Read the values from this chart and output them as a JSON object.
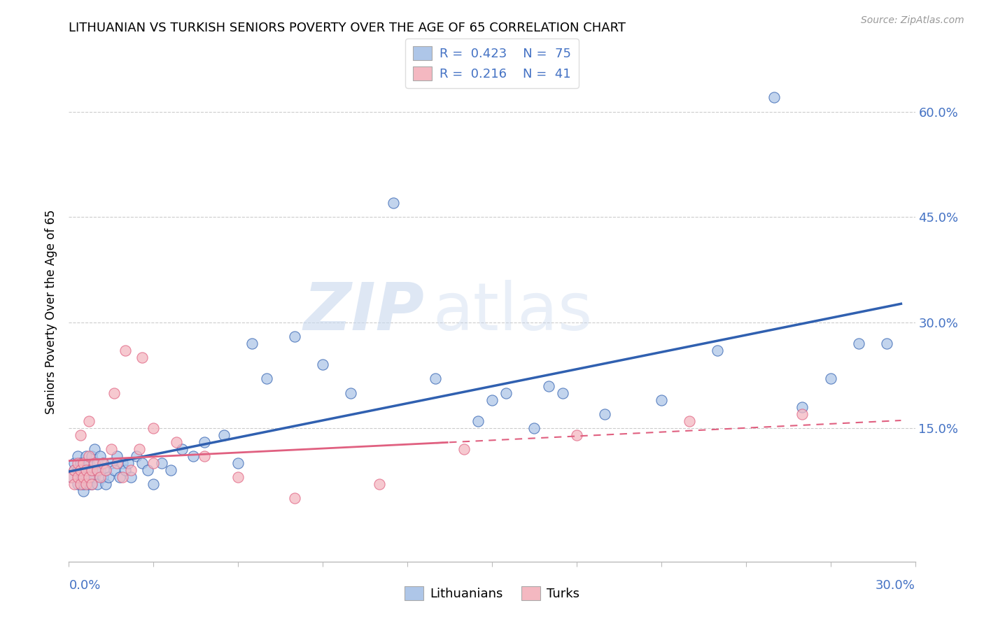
{
  "title": "LITHUANIAN VS TURKISH SENIORS POVERTY OVER THE AGE OF 65 CORRELATION CHART",
  "source": "Source: ZipAtlas.com",
  "ylabel": "Seniors Poverty Over the Age of 65",
  "y_tick_labels": [
    "",
    "15.0%",
    "30.0%",
    "45.0%",
    "60.0%"
  ],
  "y_tick_vals": [
    0.0,
    0.15,
    0.3,
    0.45,
    0.6
  ],
  "xlim": [
    0.0,
    0.3
  ],
  "ylim": [
    -0.04,
    0.67
  ],
  "R_lith": 0.423,
  "N_lith": 75,
  "R_turk": 0.216,
  "N_turk": 41,
  "color_lith": "#aec6e8",
  "color_turk": "#f4b8c1",
  "color_lith_line": "#3060b0",
  "color_turk_line": "#e06080",
  "watermark_zip": "ZIP",
  "watermark_atlas": "atlas",
  "legend_label_lith": "Lithuanians",
  "legend_label_turk": "Turks",
  "lith_x": [
    0.001,
    0.002,
    0.002,
    0.003,
    0.003,
    0.003,
    0.004,
    0.004,
    0.004,
    0.004,
    0.005,
    0.005,
    0.005,
    0.005,
    0.006,
    0.006,
    0.006,
    0.007,
    0.007,
    0.007,
    0.008,
    0.008,
    0.008,
    0.009,
    0.009,
    0.009,
    0.01,
    0.01,
    0.011,
    0.011,
    0.012,
    0.012,
    0.013,
    0.013,
    0.014,
    0.015,
    0.016,
    0.017,
    0.018,
    0.019,
    0.02,
    0.021,
    0.022,
    0.024,
    0.026,
    0.028,
    0.03,
    0.033,
    0.036,
    0.04,
    0.044,
    0.048,
    0.055,
    0.06,
    0.065,
    0.07,
    0.08,
    0.09,
    0.1,
    0.115,
    0.13,
    0.15,
    0.17,
    0.19,
    0.21,
    0.23,
    0.25,
    0.26,
    0.27,
    0.28,
    0.145,
    0.155,
    0.165,
    0.175,
    0.29
  ],
  "lith_y": [
    0.08,
    0.09,
    0.1,
    0.07,
    0.09,
    0.11,
    0.08,
    0.1,
    0.07,
    0.09,
    0.06,
    0.08,
    0.1,
    0.07,
    0.09,
    0.11,
    0.08,
    0.07,
    0.1,
    0.09,
    0.08,
    0.11,
    0.07,
    0.09,
    0.08,
    0.12,
    0.07,
    0.1,
    0.09,
    0.11,
    0.08,
    0.1,
    0.07,
    0.09,
    0.08,
    0.1,
    0.09,
    0.11,
    0.08,
    0.1,
    0.09,
    0.1,
    0.08,
    0.11,
    0.1,
    0.09,
    0.07,
    0.1,
    0.09,
    0.12,
    0.11,
    0.13,
    0.14,
    0.1,
    0.27,
    0.22,
    0.28,
    0.24,
    0.2,
    0.47,
    0.22,
    0.19,
    0.21,
    0.17,
    0.19,
    0.26,
    0.62,
    0.18,
    0.22,
    0.27,
    0.16,
    0.2,
    0.15,
    0.2,
    0.27
  ],
  "turk_x": [
    0.001,
    0.002,
    0.002,
    0.003,
    0.003,
    0.004,
    0.004,
    0.005,
    0.005,
    0.006,
    0.006,
    0.007,
    0.007,
    0.008,
    0.008,
    0.009,
    0.01,
    0.011,
    0.012,
    0.013,
    0.015,
    0.017,
    0.019,
    0.022,
    0.026,
    0.03,
    0.038,
    0.048,
    0.06,
    0.08,
    0.11,
    0.14,
    0.18,
    0.22,
    0.26,
    0.03,
    0.025,
    0.02,
    0.016,
    0.007,
    0.004
  ],
  "turk_y": [
    0.08,
    0.07,
    0.09,
    0.1,
    0.08,
    0.09,
    0.07,
    0.08,
    0.1,
    0.09,
    0.07,
    0.11,
    0.08,
    0.09,
    0.07,
    0.1,
    0.09,
    0.08,
    0.1,
    0.09,
    0.12,
    0.1,
    0.08,
    0.09,
    0.25,
    0.1,
    0.13,
    0.11,
    0.08,
    0.05,
    0.07,
    0.12,
    0.14,
    0.16,
    0.17,
    0.15,
    0.12,
    0.26,
    0.2,
    0.16,
    0.14
  ]
}
